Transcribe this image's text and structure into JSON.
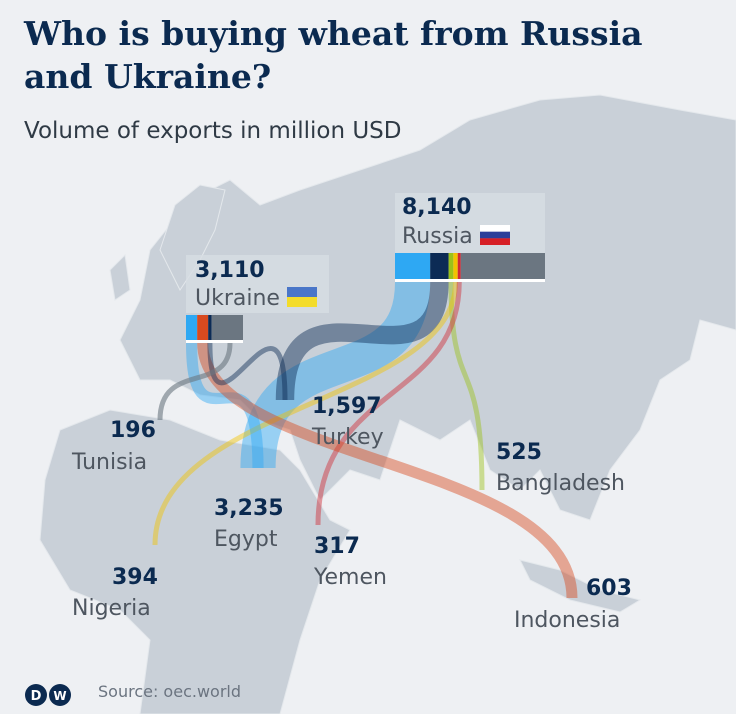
{
  "title": "Who is buying wheat from Russia and Ukraine?",
  "subtitle": "Volume of exports in million USD",
  "source": "Source: oec.world",
  "logo_text": "DW",
  "colors": {
    "egypt": "#2ea8f3",
    "turkey": "#0c2b55",
    "bangladesh": "#9bc21a",
    "nigeria": "#f2c300",
    "yemen": "#d02a35",
    "indonesia": "#d84a1f",
    "tunisia": "#6b7681",
    "other": "#6b7681"
  },
  "exporters": [
    {
      "id": "russia",
      "name": "Russia",
      "value": "8,140",
      "flag": "russia-flag",
      "segments": [
        {
          "dest": "egypt",
          "value": 1910
        },
        {
          "dest": "turkey",
          "value": 1000
        },
        {
          "dest": "bangladesh",
          "value": 255
        },
        {
          "dest": "nigeria",
          "value": 240
        },
        {
          "dest": "yemen",
          "value": 165
        },
        {
          "dest": "other",
          "value": 4570
        }
      ]
    },
    {
      "id": "ukraine",
      "name": "Ukraine",
      "value": "3,110",
      "flag": "ukraine-flag",
      "segments": [
        {
          "dest": "egypt",
          "value": 610
        },
        {
          "dest": "indonesia",
          "value": 600
        },
        {
          "dest": "turkey",
          "value": 190
        },
        {
          "dest": "other",
          "value": 1710
        }
      ]
    }
  ],
  "importers": [
    {
      "id": "tunisia",
      "name": "Tunisia",
      "value": "196"
    },
    {
      "id": "turkey",
      "name": "Turkey",
      "value": "1,597"
    },
    {
      "id": "bangladesh",
      "name": "Bangladesh",
      "value": "525"
    },
    {
      "id": "egypt",
      "name": "Egypt",
      "value": "3,235"
    },
    {
      "id": "yemen",
      "name": "Yemen",
      "value": "317"
    },
    {
      "id": "nigeria",
      "name": "Nigeria",
      "value": "394"
    },
    {
      "id": "indonesia",
      "name": "Indonesia",
      "value": "603"
    }
  ]
}
